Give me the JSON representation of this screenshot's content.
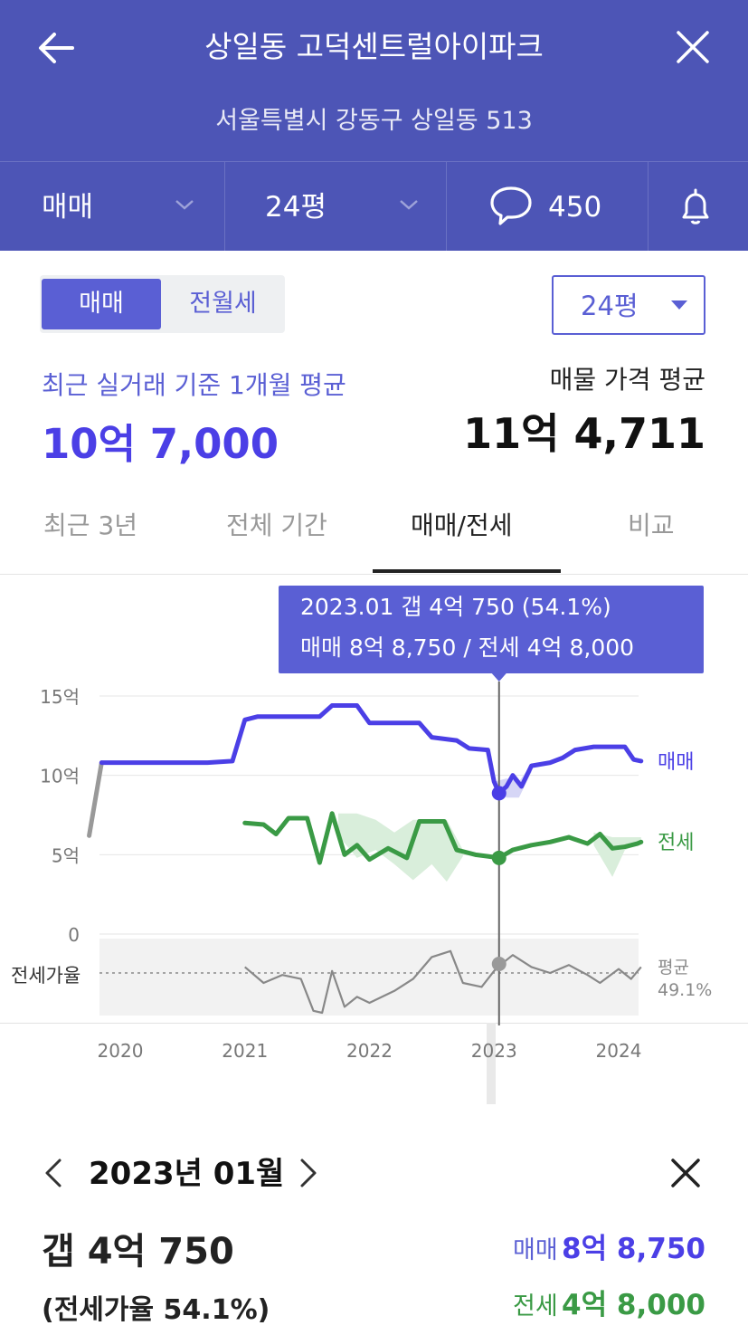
{
  "header": {
    "title": "상일동 고덕센트럴아이파크",
    "address": "서울특별시 강동구 상일동 513"
  },
  "subbar": {
    "trade_type": "매매",
    "size": "24평",
    "comment_count": "450"
  },
  "toggle": {
    "active": "매매",
    "inactive": "전월세"
  },
  "size_select": "24평",
  "summary": {
    "recent_label": "최근 실거래 기준 1개월 평균",
    "recent_value": "10억 7,000",
    "listing_label": "매물 가격 평균",
    "listing_value": "11억 4,711"
  },
  "tabs": [
    {
      "label": "최근 3년"
    },
    {
      "label": "전체 기간"
    },
    {
      "label": "매매/전세"
    },
    {
      "label": "비교"
    }
  ],
  "active_tab": "매매/전세",
  "tooltip": {
    "line1": "2023.01  갭 4억 750 (54.1%)",
    "line2": "매매 8억 8,750 / 전세 4억 8,000"
  },
  "chart_data": {
    "type": "line",
    "x_unit": "year",
    "x_ticks": [
      "2020",
      "2021",
      "2022",
      "2023",
      "2024"
    ],
    "y_ticks": [
      "15억",
      "10억",
      "5억",
      "0"
    ],
    "ylim": [
      0,
      15
    ],
    "series": [
      {
        "name": "매매",
        "color": "#4b3fe6",
        "points": [
          [
            2019.75,
            6.2
          ],
          [
            2019.85,
            10.8
          ],
          [
            2020.7,
            10.8
          ],
          [
            2020.9,
            10.9
          ],
          [
            2021.0,
            13.5
          ],
          [
            2021.1,
            13.7
          ],
          [
            2021.6,
            13.7
          ],
          [
            2021.7,
            14.4
          ],
          [
            2021.9,
            14.4
          ],
          [
            2022.0,
            13.3
          ],
          [
            2022.4,
            13.3
          ],
          [
            2022.5,
            12.4
          ],
          [
            2022.7,
            12.2
          ],
          [
            2022.8,
            11.7
          ],
          [
            2022.95,
            11.6
          ],
          [
            2023.0,
            9.6
          ],
          [
            2023.04,
            8.875
          ],
          [
            2023.1,
            9.3
          ],
          [
            2023.15,
            10.0
          ],
          [
            2023.22,
            9.3
          ],
          [
            2023.3,
            10.6
          ],
          [
            2023.45,
            10.8
          ],
          [
            2023.55,
            11.1
          ],
          [
            2023.65,
            11.6
          ],
          [
            2023.8,
            11.8
          ],
          [
            2023.95,
            11.8
          ],
          [
            2024.05,
            11.8
          ],
          [
            2024.12,
            11.0
          ],
          [
            2024.18,
            10.9
          ]
        ]
      },
      {
        "name": "전세",
        "color": "#3a9a45",
        "points": [
          [
            2021.0,
            7.0
          ],
          [
            2021.15,
            6.9
          ],
          [
            2021.25,
            6.3
          ],
          [
            2021.35,
            7.3
          ],
          [
            2021.5,
            7.3
          ],
          [
            2021.6,
            4.5
          ],
          [
            2021.7,
            7.6
          ],
          [
            2021.8,
            5.0
          ],
          [
            2021.9,
            5.6
          ],
          [
            2022.0,
            4.7
          ],
          [
            2022.15,
            5.4
          ],
          [
            2022.3,
            4.8
          ],
          [
            2022.4,
            7.1
          ],
          [
            2022.6,
            7.1
          ],
          [
            2022.7,
            5.3
          ],
          [
            2022.85,
            5.0
          ],
          [
            2022.95,
            4.9
          ],
          [
            2023.04,
            4.8
          ],
          [
            2023.15,
            5.3
          ],
          [
            2023.3,
            5.6
          ],
          [
            2023.45,
            5.8
          ],
          [
            2023.6,
            6.1
          ],
          [
            2023.75,
            5.7
          ],
          [
            2023.85,
            6.3
          ],
          [
            2023.95,
            5.4
          ],
          [
            2024.05,
            5.5
          ],
          [
            2024.15,
            5.7
          ],
          [
            2024.18,
            5.8
          ]
        ]
      },
      {
        "name": "전세가율",
        "color": "#888888",
        "points": [
          [
            2021.0,
            -2.0
          ],
          [
            2021.15,
            -2.8
          ],
          [
            2021.3,
            -2.4
          ],
          [
            2021.45,
            -2.6
          ],
          [
            2021.55,
            -4.2
          ],
          [
            2021.62,
            -4.3
          ],
          [
            2021.7,
            -2.2
          ],
          [
            2021.8,
            -4.0
          ],
          [
            2021.9,
            -3.5
          ],
          [
            2022.0,
            -3.8
          ],
          [
            2022.2,
            -3.2
          ],
          [
            2022.35,
            -2.6
          ],
          [
            2022.5,
            -1.5
          ],
          [
            2022.65,
            -1.2
          ],
          [
            2022.75,
            -2.8
          ],
          [
            2022.9,
            -3.0
          ],
          [
            2023.0,
            -2.2
          ],
          [
            2023.04,
            -1.95
          ],
          [
            2023.15,
            -1.4
          ],
          [
            2023.3,
            -2.0
          ],
          [
            2023.45,
            -2.3
          ],
          [
            2023.6,
            -1.9
          ],
          [
            2023.75,
            -2.4
          ],
          [
            2023.85,
            -2.8
          ],
          [
            2024.0,
            -2.1
          ],
          [
            2024.1,
            -2.6
          ],
          [
            2024.18,
            -2.0
          ]
        ]
      }
    ],
    "band": [
      [
        2021.75,
        7.6,
        6.2
      ],
      [
        2021.9,
        7.6,
        4.8
      ],
      [
        2022.05,
        7.2,
        5.3
      ],
      [
        2022.2,
        6.4,
        4.4
      ],
      [
        2022.35,
        7.2,
        3.4
      ],
      [
        2022.5,
        7.2,
        4.4
      ],
      [
        2022.62,
        7.2,
        3.3
      ],
      [
        2022.75,
        5.3,
        4.9
      ],
      [
        2023.8,
        6.4,
        5.6
      ],
      [
        2023.95,
        6.1,
        3.6
      ],
      [
        2024.05,
        6.1,
        5.3
      ],
      [
        2024.18,
        6.1,
        5.7
      ]
    ],
    "buy_band": [
      [
        2023.0,
        9.6,
        9.3
      ],
      [
        2023.1,
        9.8,
        8.6
      ],
      [
        2023.2,
        9.6,
        8.6
      ],
      [
        2023.3,
        10.7,
        10.2
      ]
    ],
    "ratio_avg_label": "평균",
    "ratio_avg_value": "49.1%",
    "ratio_label": "전세가율",
    "selected_x": 2023.04,
    "legend": {
      "buy": "매매",
      "jeonse": "전세"
    }
  },
  "detail": {
    "date": "2023년 01월",
    "gap": "갭 4억 750",
    "ratio": "(전세가율 54.1%)",
    "buy_label": "매매",
    "buy_value": "8억 8,750",
    "jeonse_label": "전세",
    "jeonse_value": "4억 8,000"
  },
  "colors": {
    "header_bg": "#4d55b6",
    "accent": "#5a5fd4",
    "buy": "#4b3fe6",
    "jeonse": "#3a9a45"
  }
}
